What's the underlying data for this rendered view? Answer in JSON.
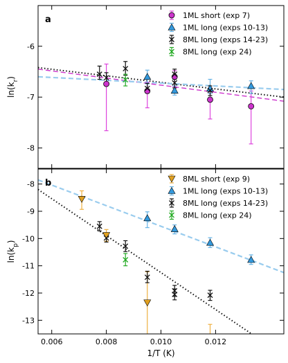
{
  "chart_data": [
    {
      "type": "scatter",
      "panel_label": "a",
      "ylabel": "ln(k",
      "ylabel_sub": "r",
      "xlim": [
        0.0055,
        0.0145
      ],
      "ylim": [
        -8.4,
        -5.2
      ],
      "yticks": [
        -8,
        -7,
        -6
      ],
      "ytick_labels": [
        "-8",
        "-7",
        "-6"
      ],
      "grid": false,
      "legend_position": "top-right",
      "series": [
        {
          "name": "1ML short (exp 7)",
          "marker": "circle",
          "color": "#cc33cc",
          "err_color": "#dd44dd",
          "points": [
            {
              "x": 0.008,
              "y": -6.74,
              "lo": -7.66,
              "hi": -6.35
            },
            {
              "x": 0.0095,
              "y": -6.88,
              "lo": -7.21,
              "hi": -6.71
            },
            {
              "x": 0.0105,
              "y": -6.6,
              "lo": -6.8,
              "hi": -6.48
            },
            {
              "x": 0.0118,
              "y": -7.05,
              "lo": -7.43,
              "hi": -6.82
            },
            {
              "x": 0.0133,
              "y": -7.18,
              "lo": -7.92,
              "hi": -6.88
            }
          ]
        },
        {
          "name": "1ML long (exps 10-13)",
          "marker": "triangle",
          "color": "#3399dd",
          "err_color": "#66b3e6",
          "points": [
            {
              "x": 0.0095,
              "y": -6.6,
              "lo": -6.74,
              "hi": -6.47
            },
            {
              "x": 0.0105,
              "y": -6.87,
              "lo": -6.96,
              "hi": -6.78
            },
            {
              "x": 0.0118,
              "y": -6.83,
              "lo": -6.93,
              "hi": -6.65
            },
            {
              "x": 0.0133,
              "y": -6.78,
              "lo": -6.93,
              "hi": -6.68
            }
          ]
        },
        {
          "name": "8ML long (exps 14-23)",
          "marker": "x",
          "color": "#111111",
          "err_color": "#111111",
          "points": [
            {
              "x": 0.00775,
              "y": -6.55,
              "lo": -6.65,
              "hi": -6.39
            },
            {
              "x": 0.008,
              "y": -6.62,
              "lo": -6.72,
              "hi": -6.52
            },
            {
              "x": 0.0087,
              "y": -6.44,
              "lo": -6.57,
              "hi": -6.3
            },
            {
              "x": 0.0095,
              "y": -6.83,
              "lo": -6.92,
              "hi": -6.73
            },
            {
              "x": 0.0105,
              "y": -6.55,
              "lo": -6.65,
              "hi": -6.45
            },
            {
              "x": 0.0105,
              "y": -6.72,
              "lo": -6.82,
              "hi": -6.62
            },
            {
              "x": 0.0118,
              "y": -6.87,
              "lo": -6.97,
              "hi": -6.78
            }
          ]
        },
        {
          "name": "8ML long (exp 24)",
          "marker": "x",
          "color": "#22aa22",
          "err_color": "#22aa22",
          "points": [
            {
              "x": 0.0087,
              "y": -6.66,
              "lo": -6.78,
              "hi": -6.55
            }
          ]
        }
      ],
      "fit_lines": [
        {
          "style": "dotted",
          "color": "#111111",
          "x": [
            0.0055,
            0.0145
          ],
          "y": [
            -6.42,
            -7.0
          ]
        },
        {
          "style": "dashed",
          "color": "#cc33cc",
          "x": [
            0.0055,
            0.0145
          ],
          "y": [
            -6.45,
            -7.08
          ]
        },
        {
          "style": "dashed",
          "color": "#99ccee",
          "x": [
            0.0055,
            0.0145
          ],
          "y": [
            -6.6,
            -6.85
          ]
        }
      ]
    },
    {
      "type": "scatter",
      "panel_label": "b",
      "ylabel": "ln(k",
      "ylabel_sub": "p",
      "xlabel": "1/T (K)",
      "xlim": [
        0.0055,
        0.0145
      ],
      "ylim": [
        -13.5,
        -7.45
      ],
      "xticks": [
        0.006,
        0.008,
        0.01,
        0.012
      ],
      "xtick_labels": [
        "0.006",
        "0.008",
        "0.010",
        "0.012"
      ],
      "yticks": [
        -13,
        -12,
        -11,
        -10,
        -9,
        -8
      ],
      "ytick_labels": [
        "-13",
        "-12",
        "-11",
        "-10",
        "-9",
        "-8"
      ],
      "grid": false,
      "legend_position": "top-right",
      "series": [
        {
          "name": "8ML short (exp 9)",
          "marker": "triangle-down",
          "color": "#e0a020",
          "err_color": "#eeb040",
          "points": [
            {
              "x": 0.0071,
              "y": -8.55,
              "lo": -8.93,
              "hi": -8.25
            },
            {
              "x": 0.008,
              "y": -9.88,
              "lo": -10.1,
              "hi": -9.67
            },
            {
              "x": 0.0095,
              "y": -12.35,
              "lo": -13.6,
              "hi": -11.22
            },
            {
              "x": 0.0118,
              "y": -13.6,
              "lo": -13.6,
              "hi": -13.15
            }
          ]
        },
        {
          "name": "1ML long (exps 10-13)",
          "marker": "triangle",
          "color": "#3399dd",
          "err_color": "#66b3e6",
          "points": [
            {
              "x": 0.0095,
              "y": -9.25,
              "lo": -9.6,
              "hi": -9.02
            },
            {
              "x": 0.0105,
              "y": -9.65,
              "lo": -9.83,
              "hi": -9.5
            },
            {
              "x": 0.0118,
              "y": -10.15,
              "lo": -10.33,
              "hi": -9.97
            },
            {
              "x": 0.0133,
              "y": -10.78,
              "lo": -10.95,
              "hi": -10.6
            }
          ]
        },
        {
          "name": "8ML long (exps 14-23)",
          "marker": "x",
          "color": "#111111",
          "err_color": "#111111",
          "points": [
            {
              "x": 0.00775,
              "y": -9.55,
              "lo": -9.72,
              "hi": -9.38
            },
            {
              "x": 0.008,
              "y": -9.98,
              "lo": -10.13,
              "hi": -9.82
            },
            {
              "x": 0.0087,
              "y": -10.28,
              "lo": -10.48,
              "hi": -10.08
            },
            {
              "x": 0.0095,
              "y": -11.42,
              "lo": -11.62,
              "hi": -11.2
            },
            {
              "x": 0.0105,
              "y": -11.92,
              "lo": -12.12,
              "hi": -11.72
            },
            {
              "x": 0.0105,
              "y": -12.05,
              "lo": -12.25,
              "hi": -11.85
            },
            {
              "x": 0.0118,
              "y": -12.08,
              "lo": -12.27,
              "hi": -11.9
            }
          ]
        },
        {
          "name": "8ML long (exp 24)",
          "marker": "x",
          "color": "#22aa22",
          "err_color": "#22aa22",
          "points": [
            {
              "x": 0.0087,
              "y": -10.78,
              "lo": -11.0,
              "hi": -10.55
            }
          ]
        }
      ],
      "fit_lines": [
        {
          "style": "dashed",
          "color": "#99ccee",
          "x": [
            0.0055,
            0.0145
          ],
          "y": [
            -7.85,
            -11.25
          ]
        },
        {
          "style": "dotted",
          "color": "#111111",
          "x": [
            0.0055,
            0.0145
          ],
          "y": [
            -8.2,
            -14.3
          ]
        }
      ]
    }
  ]
}
